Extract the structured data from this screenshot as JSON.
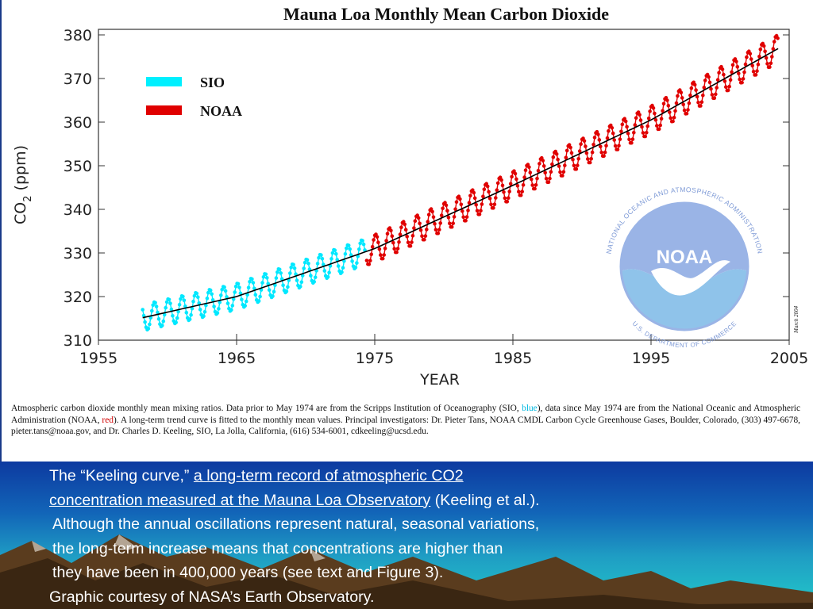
{
  "chart_data": {
    "type": "line",
    "title": "Mauna Loa Monthly Mean Carbon Dioxide",
    "xlabel": "YEAR",
    "ylabel_main": "CO",
    "ylabel_sub": "2",
    "ylabel_unit": "(ppm)",
    "xlim": [
      1955,
      2005
    ],
    "ylim": [
      310,
      380
    ],
    "x_ticks": [
      "1955",
      "1965",
      "1975",
      "1985",
      "1995",
      "2005"
    ],
    "y_ticks": [
      "310",
      "320",
      "330",
      "340",
      "350",
      "360",
      "370",
      "380"
    ],
    "legend": [
      {
        "name": "SIO",
        "color": "#00f0ff"
      },
      {
        "name": "NOAA",
        "color": "#e00000"
      }
    ],
    "legend_position": "top-left",
    "grid": false,
    "series": [
      {
        "name": "SIO",
        "color": "#00e8ff",
        "x_range": [
          1958.2,
          1974.33
        ],
        "base_at_start": 315.0,
        "seasonal_amplitude_ppm": 3.0
      },
      {
        "name": "NOAA",
        "color": "#e00000",
        "x_range": [
          1974.42,
          2004.17
        ],
        "seasonal_amplitude_ppm": 3.2
      },
      {
        "name": "trend",
        "color": "#000000"
      }
    ],
    "trend_points": [
      [
        1958,
        315.0
      ],
      [
        1965,
        320.0
      ],
      [
        1975,
        331.0
      ],
      [
        1985,
        345.5
      ],
      [
        1995,
        360.5
      ],
      [
        2004,
        376.5
      ]
    ],
    "side_note": "March 2004"
  },
  "logo": {
    "center_text": "NOAA",
    "ring_text": "NATIONAL OCEANIC AND ATMOSPHERIC ADMINISTRATION",
    "bottom_text": "U.S. DEPARTMENT OF COMMERCE"
  },
  "caption": {
    "p1": "Atmospheric carbon dioxide monthly mean mixing ratios.  Data prior to May 1974 are from the Scripps Institution of Oceanography (SIO, ",
    "blue_word": "blue",
    "p2": "), data since May 1974 are from the National Oceanic and Atmospheric Administration (NOAA, ",
    "red_word": "red",
    "p3": "). A long-term trend curve is fitted to the monthly mean values.  Principal investigators:  Dr. Pieter Tans, NOAA CMDL Carbon Cycle Greenhouse Gases, Boulder, Colorado, (303) 497-6678, pieter.tans@noaa.gov, and Dr. Charles D. Keeling, SIO, La Jolla, California, (616) 534-6001, cdkeeling@ucsd.edu."
  },
  "slide": {
    "line1_pre": "The “Keeling curve,” ",
    "link_part1": "a long-term record of atmospheric CO2 ",
    "link_part2": "concentration measured at the Mauna Loa Observatory",
    "line2_post": " (Keeling et al.).",
    "line3": "Although the annual oscillations represent natural, seasonal variations,",
    "line4": "the long-term increase means that concentrations are higher than",
    "line5": "they have been in 400,000 years (see text and Figure 3).",
    "line6": "Graphic courtesy of NASA’s Earth Observatory."
  },
  "colors": {
    "slide_top": "#0d3aa0",
    "slide_bottom": "#22c9c9",
    "logo_blue": "#9ab4e6",
    "logo_light": "#c9d6f0"
  }
}
